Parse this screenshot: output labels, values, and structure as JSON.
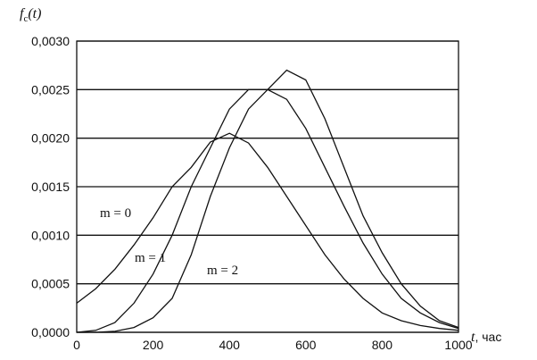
{
  "chart_data": {
    "type": "line",
    "ylabel_main": "f",
    "ylabel_sub": "c",
    "ylabel_arg": "(t)",
    "xlabel": "t",
    "xlabel_unit": ", час",
    "xlim": [
      0,
      1000
    ],
    "ylim": [
      0,
      0.003
    ],
    "xticks": [
      0,
      200,
      400,
      600,
      800,
      1000
    ],
    "xtick_labels": [
      "0",
      "200",
      "400",
      "600",
      "800",
      "1000"
    ],
    "yticks": [
      0,
      0.0005,
      0.001,
      0.0015,
      0.002,
      0.0025,
      0.003
    ],
    "ytick_labels": [
      "0,0000",
      "0,0005",
      "0,0010",
      "0,0015",
      "0,0020",
      "0,0025",
      "0,0030"
    ],
    "grid": "horizontal",
    "series": [
      {
        "name": "m = 0",
        "x": [
          0,
          50,
          100,
          150,
          200,
          250,
          300,
          350,
          400,
          450,
          500,
          550,
          600,
          650,
          700,
          750,
          800,
          850,
          900,
          950,
          1000
        ],
        "y": [
          0.0003,
          0.00045,
          0.00065,
          0.0009,
          0.00118,
          0.0015,
          0.0017,
          0.00196,
          0.00205,
          0.00195,
          0.0017,
          0.0014,
          0.0011,
          0.0008,
          0.00055,
          0.00035,
          0.0002,
          0.00012,
          7e-05,
          4e-05,
          2e-05
        ]
      },
      {
        "name": "m = 1",
        "x": [
          0,
          50,
          100,
          150,
          200,
          250,
          300,
          350,
          400,
          450,
          500,
          550,
          600,
          650,
          700,
          750,
          800,
          850,
          900,
          950,
          1000
        ],
        "y": [
          0.0,
          2e-05,
          0.0001,
          0.0003,
          0.0006,
          0.001,
          0.0015,
          0.0019,
          0.0023,
          0.0025,
          0.0025,
          0.0024,
          0.0021,
          0.0017,
          0.0013,
          0.00092,
          0.0006,
          0.00035,
          0.0002,
          0.0001,
          4e-05
        ]
      },
      {
        "name": "m = 2",
        "x": [
          0,
          50,
          100,
          150,
          200,
          250,
          300,
          350,
          400,
          450,
          500,
          550,
          600,
          650,
          700,
          750,
          800,
          850,
          900,
          950,
          1000
        ],
        "y": [
          0.0,
          0.0,
          1e-05,
          5e-05,
          0.00015,
          0.00035,
          0.0008,
          0.0014,
          0.0019,
          0.0023,
          0.0025,
          0.0027,
          0.0026,
          0.0022,
          0.0017,
          0.0012,
          0.00082,
          0.0005,
          0.00027,
          0.00012,
          5e-05
        ]
      }
    ]
  }
}
